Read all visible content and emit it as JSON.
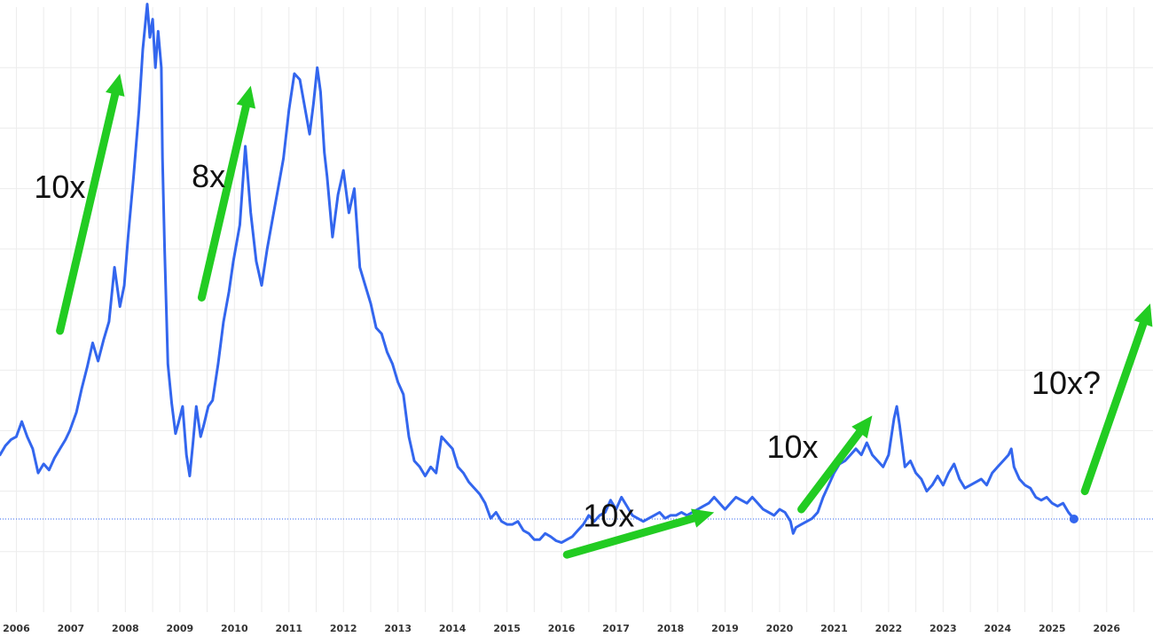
{
  "chart_data": {
    "type": "line",
    "title": "",
    "xlabel": "",
    "ylabel": "",
    "x_ticks": [
      "2006",
      "2007",
      "2008",
      "2009",
      "2010",
      "2011",
      "2012",
      "2013",
      "2014",
      "2015",
      "2016",
      "2017",
      "2018",
      "2019",
      "2020",
      "2021",
      "2022",
      "2023",
      "2024",
      "2025",
      "2026"
    ],
    "x_range": [
      2005.7,
      2026.85
    ],
    "y_range": [
      0,
      100
    ],
    "grid": true,
    "y_axis_labels_visible": false,
    "last_value": 15.4,
    "series": [
      {
        "name": "",
        "color": "#3366ee",
        "points": [
          [
            2005.7,
            26.0
          ],
          [
            2005.8,
            27.5
          ],
          [
            2005.9,
            28.5
          ],
          [
            2006.0,
            29.0
          ],
          [
            2006.1,
            31.5
          ],
          [
            2006.2,
            29.0
          ],
          [
            2006.3,
            27.0
          ],
          [
            2006.4,
            23.0
          ],
          [
            2006.5,
            24.5
          ],
          [
            2006.6,
            23.5
          ],
          [
            2006.7,
            25.5
          ],
          [
            2006.8,
            27.0
          ],
          [
            2006.9,
            28.5
          ],
          [
            2006.98,
            30.0
          ],
          [
            2007.1,
            33.0
          ],
          [
            2007.2,
            37.0
          ],
          [
            2007.3,
            40.5
          ],
          [
            2007.4,
            44.5
          ],
          [
            2007.5,
            41.5
          ],
          [
            2007.6,
            45.0
          ],
          [
            2007.7,
            48.0
          ],
          [
            2007.8,
            57.0
          ],
          [
            2007.9,
            50.5
          ],
          [
            2007.98,
            54.0
          ],
          [
            2008.05,
            62.0
          ],
          [
            2008.15,
            72.0
          ],
          [
            2008.25,
            83.0
          ],
          [
            2008.32,
            93.0
          ],
          [
            2008.4,
            100.5
          ],
          [
            2008.45,
            95.0
          ],
          [
            2008.5,
            98.0
          ],
          [
            2008.55,
            90.0
          ],
          [
            2008.6,
            96.0
          ],
          [
            2008.66,
            90.0
          ],
          [
            2008.68,
            75.0
          ],
          [
            2008.72,
            60.0
          ],
          [
            2008.78,
            41.0
          ],
          [
            2008.85,
            34.5
          ],
          [
            2008.92,
            29.5
          ],
          [
            2008.98,
            31.5
          ],
          [
            2009.05,
            34.0
          ],
          [
            2009.12,
            26.0
          ],
          [
            2009.18,
            22.5
          ],
          [
            2009.24,
            28.0
          ],
          [
            2009.3,
            34.0
          ],
          [
            2009.38,
            29.0
          ],
          [
            2009.44,
            31.0
          ],
          [
            2009.52,
            34.0
          ],
          [
            2009.6,
            35.0
          ],
          [
            2009.7,
            41.0
          ],
          [
            2009.8,
            48.0
          ],
          [
            2009.9,
            53.0
          ],
          [
            2009.98,
            58.0
          ],
          [
            2010.1,
            64.0
          ],
          [
            2010.2,
            77.0
          ],
          [
            2010.3,
            66.0
          ],
          [
            2010.4,
            58.0
          ],
          [
            2010.5,
            54.0
          ],
          [
            2010.6,
            60.0
          ],
          [
            2010.7,
            65.0
          ],
          [
            2010.8,
            70.0
          ],
          [
            2010.9,
            75.0
          ],
          [
            2011.0,
            83.0
          ],
          [
            2011.1,
            89.0
          ],
          [
            2011.2,
            88.0
          ],
          [
            2011.3,
            83.0
          ],
          [
            2011.38,
            79.0
          ],
          [
            2011.45,
            84.0
          ],
          [
            2011.52,
            90.0
          ],
          [
            2011.58,
            86.0
          ],
          [
            2011.65,
            76.0
          ],
          [
            2011.7,
            72.0
          ],
          [
            2011.8,
            62.0
          ],
          [
            2011.9,
            69.0
          ],
          [
            2012.0,
            73.0
          ],
          [
            2012.1,
            66.0
          ],
          [
            2012.2,
            70.0
          ],
          [
            2012.3,
            57.0
          ],
          [
            2012.4,
            54.0
          ],
          [
            2012.5,
            51.0
          ],
          [
            2012.6,
            47.0
          ],
          [
            2012.7,
            46.0
          ],
          [
            2012.8,
            43.0
          ],
          [
            2012.9,
            41.0
          ],
          [
            2013.0,
            38.0
          ],
          [
            2013.1,
            36.0
          ],
          [
            2013.2,
            29.0
          ],
          [
            2013.3,
            25.0
          ],
          [
            2013.4,
            24.0
          ],
          [
            2013.5,
            22.5
          ],
          [
            2013.6,
            24.0
          ],
          [
            2013.7,
            23.0
          ],
          [
            2013.8,
            29.0
          ],
          [
            2013.9,
            28.0
          ],
          [
            2014.0,
            27.0
          ],
          [
            2014.1,
            24.0
          ],
          [
            2014.2,
            23.0
          ],
          [
            2014.3,
            21.5
          ],
          [
            2014.4,
            20.5
          ],
          [
            2014.5,
            19.5
          ],
          [
            2014.6,
            18.0
          ],
          [
            2014.7,
            15.5
          ],
          [
            2014.8,
            16.5
          ],
          [
            2014.9,
            15.0
          ],
          [
            2015.0,
            14.5
          ],
          [
            2015.1,
            14.5
          ],
          [
            2015.2,
            15.0
          ],
          [
            2015.3,
            13.5
          ],
          [
            2015.4,
            13.0
          ],
          [
            2015.5,
            12.0
          ],
          [
            2015.6,
            12.0
          ],
          [
            2015.7,
            13.0
          ],
          [
            2015.8,
            12.5
          ],
          [
            2015.9,
            11.8
          ],
          [
            2016.0,
            11.5
          ],
          [
            2016.1,
            12.0
          ],
          [
            2016.2,
            12.5
          ],
          [
            2016.3,
            13.5
          ],
          [
            2016.4,
            14.5
          ],
          [
            2016.5,
            16.0
          ],
          [
            2016.6,
            15.0
          ],
          [
            2016.7,
            16.0
          ],
          [
            2016.8,
            16.5
          ],
          [
            2016.9,
            18.5
          ],
          [
            2017.0,
            17.0
          ],
          [
            2017.1,
            19.0
          ],
          [
            2017.2,
            17.5
          ],
          [
            2017.3,
            16.0
          ],
          [
            2017.4,
            15.5
          ],
          [
            2017.5,
            15.0
          ],
          [
            2017.6,
            15.5
          ],
          [
            2017.7,
            16.0
          ],
          [
            2017.8,
            16.5
          ],
          [
            2017.9,
            15.5
          ],
          [
            2018.0,
            16.0
          ],
          [
            2018.1,
            16.0
          ],
          [
            2018.2,
            16.5
          ],
          [
            2018.3,
            16.0
          ],
          [
            2018.4,
            16.5
          ],
          [
            2018.5,
            17.0
          ],
          [
            2018.6,
            17.5
          ],
          [
            2018.7,
            18.0
          ],
          [
            2018.8,
            19.0
          ],
          [
            2018.9,
            18.0
          ],
          [
            2019.0,
            17.0
          ],
          [
            2019.1,
            18.0
          ],
          [
            2019.2,
            19.0
          ],
          [
            2019.3,
            18.5
          ],
          [
            2019.4,
            18.0
          ],
          [
            2019.5,
            19.0
          ],
          [
            2019.6,
            18.0
          ],
          [
            2019.7,
            17.0
          ],
          [
            2019.8,
            16.5
          ],
          [
            2019.9,
            16.0
          ],
          [
            2020.0,
            17.0
          ],
          [
            2020.1,
            16.5
          ],
          [
            2020.2,
            15.0
          ],
          [
            2020.25,
            13.0
          ],
          [
            2020.3,
            14.0
          ],
          [
            2020.4,
            14.5
          ],
          [
            2020.5,
            15.0
          ],
          [
            2020.6,
            15.5
          ],
          [
            2020.7,
            16.5
          ],
          [
            2020.8,
            19.0
          ],
          [
            2020.9,
            21.0
          ],
          [
            2021.0,
            23.0
          ],
          [
            2021.1,
            24.5
          ],
          [
            2021.2,
            25.0
          ],
          [
            2021.3,
            26.0
          ],
          [
            2021.4,
            27.0
          ],
          [
            2021.5,
            26.0
          ],
          [
            2021.6,
            28.0
          ],
          [
            2021.7,
            26.0
          ],
          [
            2021.8,
            25.0
          ],
          [
            2021.9,
            24.0
          ],
          [
            2022.0,
            26.0
          ],
          [
            2022.1,
            32.0
          ],
          [
            2022.15,
            34.0
          ],
          [
            2022.2,
            31.0
          ],
          [
            2022.3,
            24.0
          ],
          [
            2022.4,
            25.0
          ],
          [
            2022.5,
            23.0
          ],
          [
            2022.6,
            22.0
          ],
          [
            2022.7,
            20.0
          ],
          [
            2022.8,
            21.0
          ],
          [
            2022.9,
            22.5
          ],
          [
            2023.0,
            21.0
          ],
          [
            2023.1,
            23.0
          ],
          [
            2023.2,
            24.5
          ],
          [
            2023.3,
            22.0
          ],
          [
            2023.4,
            20.5
          ],
          [
            2023.5,
            21.0
          ],
          [
            2023.6,
            21.5
          ],
          [
            2023.7,
            22.0
          ],
          [
            2023.8,
            21.0
          ],
          [
            2023.9,
            23.0
          ],
          [
            2024.0,
            24.0
          ],
          [
            2024.1,
            25.0
          ],
          [
            2024.2,
            26.0
          ],
          [
            2024.25,
            27.0
          ],
          [
            2024.3,
            24.0
          ],
          [
            2024.4,
            22.0
          ],
          [
            2024.5,
            21.0
          ],
          [
            2024.6,
            20.5
          ],
          [
            2024.7,
            19.0
          ],
          [
            2024.8,
            18.5
          ],
          [
            2024.9,
            19.0
          ],
          [
            2025.0,
            18.0
          ],
          [
            2025.1,
            17.5
          ],
          [
            2025.2,
            18.0
          ],
          [
            2025.3,
            16.5
          ],
          [
            2025.4,
            15.4
          ]
        ]
      }
    ],
    "annotations": [
      {
        "label": "10x",
        "arrow_from": [
          2006.8,
          46.5
        ],
        "arrow_to": [
          2007.9,
          89.0
        ]
      },
      {
        "label": "8x",
        "arrow_from": [
          2009.4,
          52.0
        ],
        "arrow_to": [
          2010.3,
          87.0
        ]
      },
      {
        "label": "10x",
        "arrow_from": [
          2016.1,
          9.5
        ],
        "arrow_to": [
          2018.8,
          16.5
        ]
      },
      {
        "label": "10x",
        "arrow_from": [
          2020.4,
          17.0
        ],
        "arrow_to": [
          2021.7,
          32.5
        ]
      },
      {
        "label": "10x?",
        "arrow_from": [
          2025.6,
          20.0
        ],
        "arrow_to": [
          2026.8,
          51.0
        ]
      }
    ],
    "colors": {
      "line": "#3366ee",
      "arrow": "#22cc22",
      "grid": "#ececec",
      "baseline": "#3366ee"
    }
  }
}
